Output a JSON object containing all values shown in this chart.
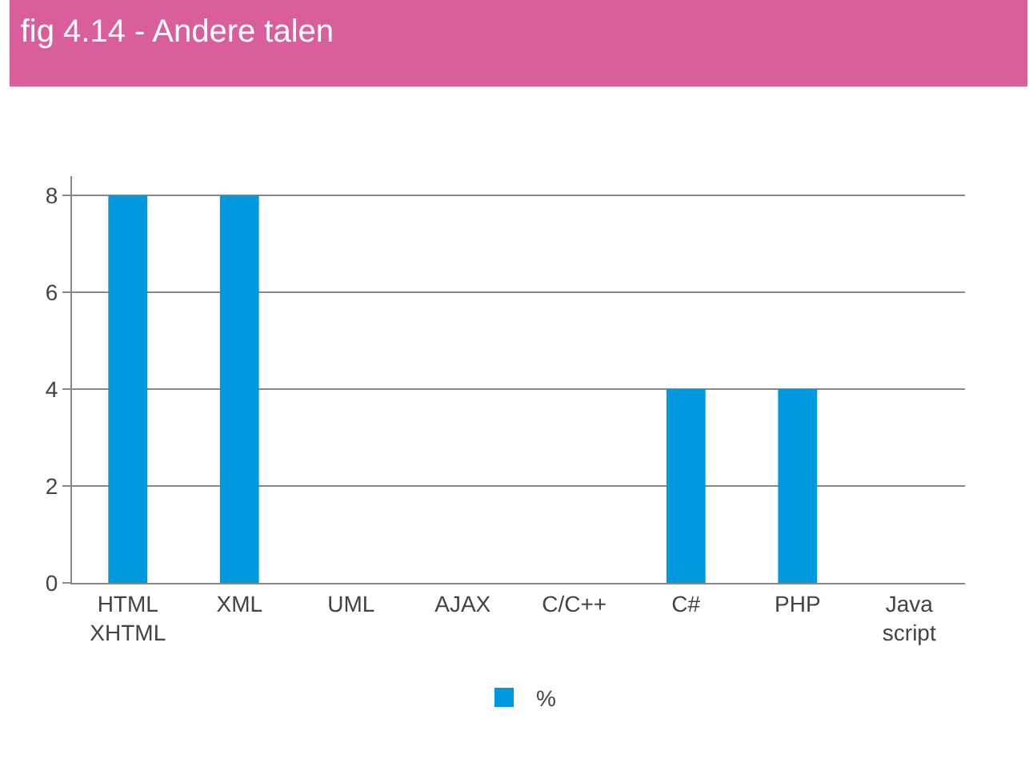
{
  "chart_data": {
    "type": "bar",
    "title": "fig 4.14 - Andere talen",
    "categories": [
      "HTML\nXHTML",
      "XML",
      "UML",
      "AJAX",
      "C/C++",
      "C#",
      "PHP",
      "Java\nscript"
    ],
    "series": [
      {
        "name": "%",
        "color": "#0099dd",
        "values": [
          8,
          8,
          0,
          0,
          0,
          4,
          4,
          0
        ]
      }
    ],
    "ylim": [
      0,
      8.4
    ],
    "yticks": [
      0,
      2,
      4,
      6,
      8
    ],
    "grid": "y",
    "legend": "bottom"
  }
}
